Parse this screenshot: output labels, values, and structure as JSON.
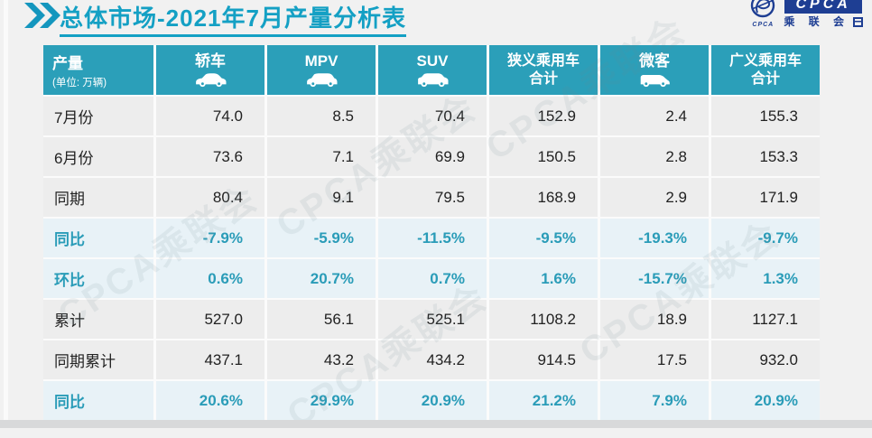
{
  "title": {
    "text": "总体市场-2021年7月产量分析表"
  },
  "logo": {
    "badge_text": "CPCA",
    "org_name": "乘 联 会",
    "emblem_caption": "CPCA"
  },
  "watermark_text": "CPCA乘联会",
  "colors": {
    "header_teal": "#2B9FB9",
    "title_teal": "#14A0C4",
    "highlight_row_bg": "#E8F2F7",
    "highlight_text": "#2A9CB8",
    "logo_navy": "#1E3E93",
    "page_bg": "#F1F1F1"
  },
  "table": {
    "unit_header": {
      "title": "产量",
      "subtitle": "(单位: 万辆)"
    },
    "columns": [
      {
        "label": "轿车",
        "icon": "sedan-icon"
      },
      {
        "label": "MPV",
        "icon": "mpv-icon"
      },
      {
        "label": "SUV",
        "icon": "suv-icon"
      },
      {
        "label": "狭义乘用车",
        "label_line2": "合计",
        "icon": null
      },
      {
        "label": "微客",
        "icon": "microvan-icon"
      },
      {
        "label": "广义乘用车",
        "label_line2": "合计",
        "icon": null
      }
    ],
    "rows": [
      {
        "label": "7月份",
        "highlight": false,
        "values": [
          "74.0",
          "8.5",
          "70.4",
          "152.9",
          "2.4",
          "155.3"
        ]
      },
      {
        "label": "6月份",
        "highlight": false,
        "values": [
          "73.6",
          "7.1",
          "69.9",
          "150.5",
          "2.8",
          "153.3"
        ]
      },
      {
        "label": "同期",
        "highlight": false,
        "values": [
          "80.4",
          "9.1",
          "79.5",
          "168.9",
          "2.9",
          "171.9"
        ]
      },
      {
        "label": "同比",
        "highlight": true,
        "values": [
          "-7.9%",
          "-5.9%",
          "-11.5%",
          "-9.5%",
          "-19.3%",
          "-9.7%"
        ]
      },
      {
        "label": "环比",
        "highlight": true,
        "values": [
          "0.6%",
          "20.7%",
          "0.7%",
          "1.6%",
          "-15.7%",
          "1.3%"
        ]
      },
      {
        "label": "累计",
        "highlight": false,
        "values": [
          "527.0",
          "56.1",
          "525.1",
          "1108.2",
          "18.9",
          "1127.1"
        ]
      },
      {
        "label": "同期累计",
        "highlight": false,
        "values": [
          "437.1",
          "43.2",
          "434.2",
          "914.5",
          "17.5",
          "932.0"
        ]
      },
      {
        "label": "同比",
        "highlight": true,
        "values": [
          "20.6%",
          "29.9%",
          "20.9%",
          "21.2%",
          "7.9%",
          "20.9%"
        ]
      }
    ]
  },
  "chart_data": {
    "type": "table",
    "title": "总体市场-2021年7月产量分析表",
    "unit": "万辆",
    "categories": [
      "轿车",
      "MPV",
      "SUV",
      "狭义乘用车合计",
      "微客",
      "广义乘用车合计"
    ],
    "series": [
      {
        "name": "7月份",
        "values": [
          74.0,
          8.5,
          70.4,
          152.9,
          2.4,
          155.3
        ]
      },
      {
        "name": "6月份",
        "values": [
          73.6,
          7.1,
          69.9,
          150.5,
          2.8,
          153.3
        ]
      },
      {
        "name": "同期",
        "values": [
          80.4,
          9.1,
          79.5,
          168.9,
          2.9,
          171.9
        ]
      },
      {
        "name": "同比",
        "values": [
          "-7.9%",
          "-5.9%",
          "-11.5%",
          "-9.5%",
          "-19.3%",
          "-9.7%"
        ]
      },
      {
        "name": "环比",
        "values": [
          "0.6%",
          "20.7%",
          "0.7%",
          "1.6%",
          "-15.7%",
          "1.3%"
        ]
      },
      {
        "name": "累计",
        "values": [
          527.0,
          56.1,
          525.1,
          1108.2,
          18.9,
          1127.1
        ]
      },
      {
        "name": "同期累计",
        "values": [
          437.1,
          43.2,
          434.2,
          914.5,
          17.5,
          932.0
        ]
      },
      {
        "name": "同比(累计)",
        "values": [
          "20.6%",
          "29.9%",
          "20.9%",
          "21.2%",
          "7.9%",
          "20.9%"
        ]
      }
    ]
  }
}
